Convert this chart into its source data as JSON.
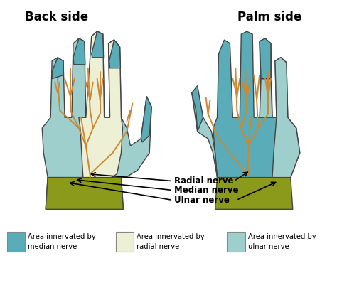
{
  "back_side_label": "Back side",
  "palm_side_label": "Palm side",
  "median_color": "#5aacb8",
  "radial_color": "#eef0d5",
  "ulnar_color": "#9ecfcd",
  "wrist_color": "#8b9a1a",
  "nerve_line_color": "#cc8833",
  "outline_color": "#444444",
  "bg_color": "#ffffff",
  "legend_items": [
    {
      "label": "Area innervated by\nmedian nerve",
      "color": "#5aacb8"
    },
    {
      "label": "Area innervated by\nradial nerve",
      "color": "#eef0d5"
    },
    {
      "label": "Area innervated by\nulnar nerve",
      "color": "#9ecfcd"
    }
  ]
}
